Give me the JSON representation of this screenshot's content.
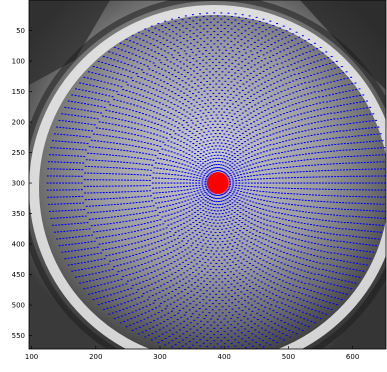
{
  "image": {
    "description_icon": "grayscale-camera-frame-icon",
    "grid_color": "#0000ff",
    "center_marker_color": "#ff0000",
    "background_tone": "#808080"
  },
  "axes": {
    "x_ticks": [
      "100",
      "200",
      "300",
      "400",
      "500",
      "600"
    ],
    "y_ticks": [
      "50",
      "100",
      "150",
      "200",
      "250",
      "300",
      "350",
      "400",
      "450",
      "500",
      "550"
    ],
    "x_values": [
      100,
      200,
      300,
      400,
      500,
      600
    ],
    "y_values": [
      50,
      100,
      150,
      200,
      250,
      300,
      350,
      400,
      450,
      500,
      550
    ],
    "xlim": [
      96,
      652
    ],
    "ylim": [
      0,
      572
    ]
  },
  "overlay": {
    "center": [
      390,
      300
    ],
    "radius_px": 265,
    "rings": 55,
    "spokes": 150
  }
}
